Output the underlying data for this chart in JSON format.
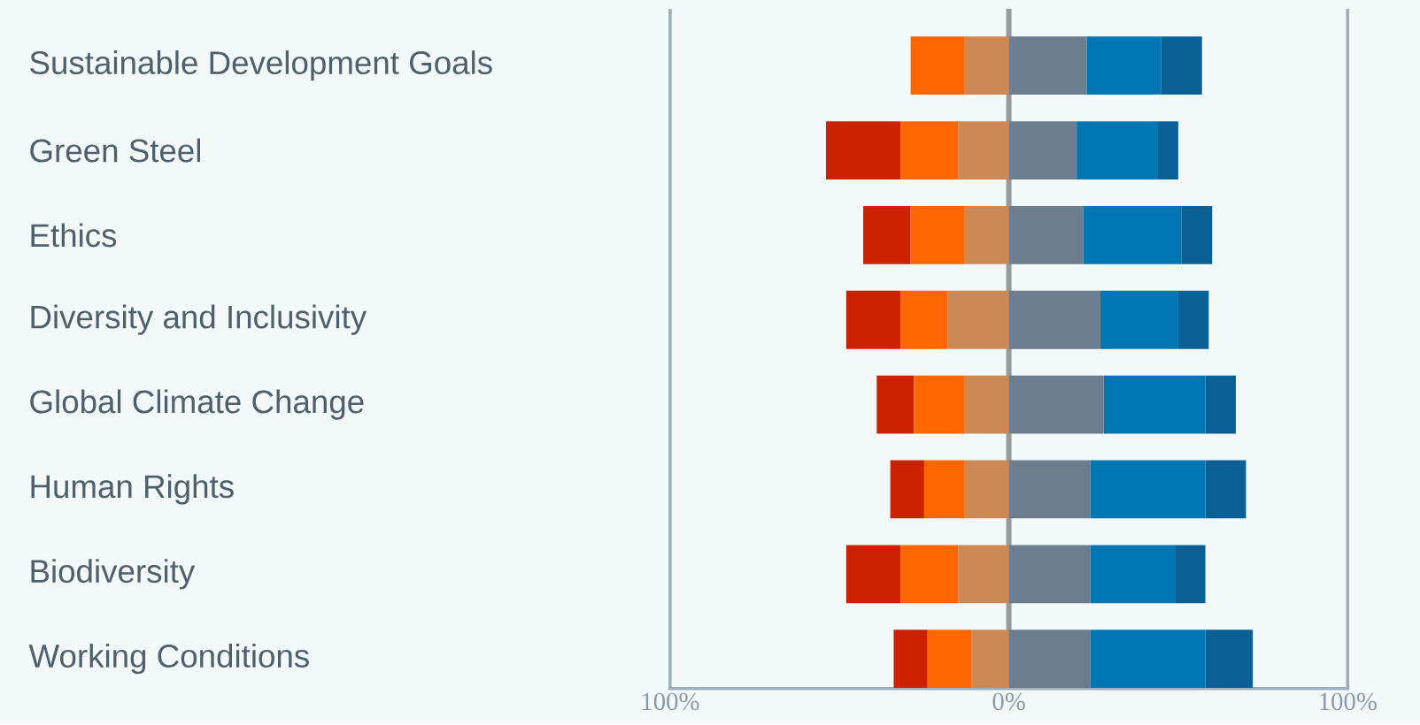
{
  "chart_data": {
    "type": "bar",
    "orientation": "horizontal",
    "stacked": true,
    "categories": [
      "Sustainable Development Goals",
      "Green Steel",
      "Ethics",
      "Diversity and Inclusivity",
      "Global Climate Change",
      "Human Rights",
      "Biodiversity",
      "Working Conditions"
    ],
    "series": [
      {
        "color": "#cc8855",
        "values": [
          -13,
          -15,
          -13,
          -18,
          -13,
          -13,
          -15,
          -11
        ]
      },
      {
        "color": "#ff6600",
        "values": [
          -16,
          -17,
          -16,
          -14,
          -15,
          -12,
          -17,
          -13
        ]
      },
      {
        "color": "#cc2200",
        "values": [
          0,
          -22,
          -14,
          -16,
          -11,
          -10,
          -16,
          -10
        ]
      },
      {
        "color": "#6b7d8e",
        "values": [
          23,
          20,
          22,
          27,
          28,
          24,
          24,
          24
        ]
      },
      {
        "color": "#0077b3",
        "values": [
          22,
          24,
          29,
          23,
          30,
          34,
          25,
          34
        ]
      },
      {
        "color": "#0b6096",
        "values": [
          12,
          6,
          9,
          9,
          9,
          12,
          9,
          14
        ]
      }
    ],
    "xlim": [
      -100,
      100
    ],
    "xticks": [
      {
        "value": -100,
        "label": "100%"
      },
      {
        "value": 0,
        "label": "0%"
      },
      {
        "value": 100,
        "label": "100%"
      }
    ],
    "ref_lines": [
      {
        "axis": "x",
        "value": 0,
        "color": "#999999"
      }
    ]
  }
}
